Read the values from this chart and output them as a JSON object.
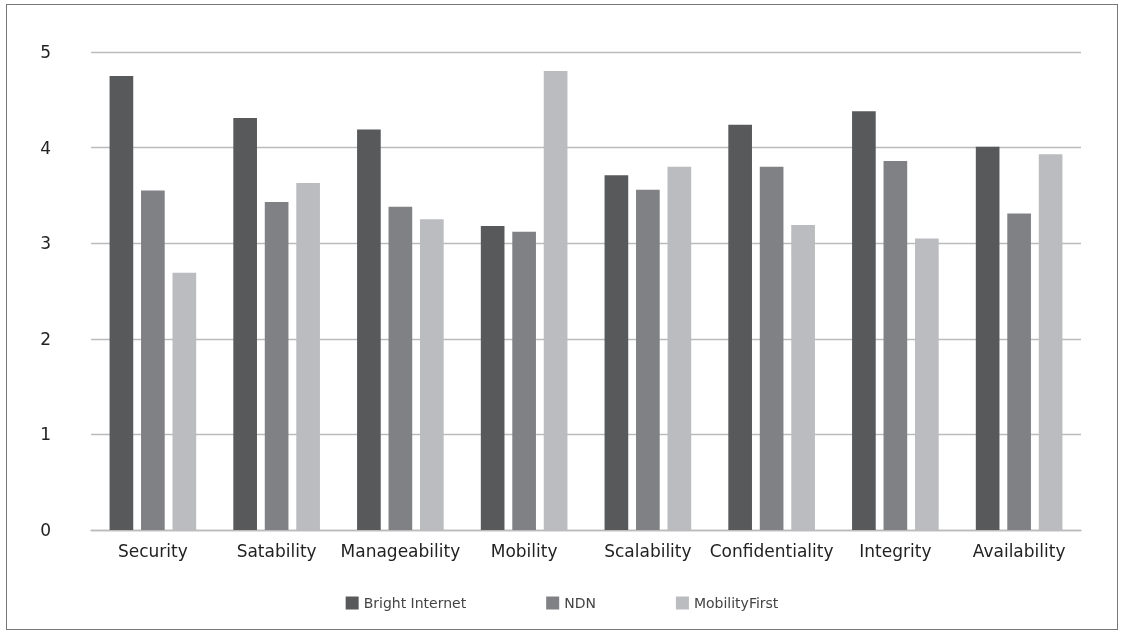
{
  "chart_data": {
    "type": "bar",
    "categories": [
      "Security",
      "Satability",
      "Manageability",
      "Mobility",
      "Scalability",
      "Confidentiality",
      "Integrity",
      "Availability"
    ],
    "series": [
      {
        "name": "Bright Internet",
        "color": "#58595b",
        "values": [
          4.75,
          4.31,
          4.19,
          3.18,
          3.71,
          4.24,
          4.38,
          4.01
        ]
      },
      {
        "name": "NDN",
        "color": "#808184",
        "values": [
          3.55,
          3.43,
          3.38,
          3.12,
          3.56,
          3.8,
          3.86,
          3.31
        ]
      },
      {
        "name": "MobilityFirst",
        "color": "#bbbcbf",
        "values": [
          2.69,
          3.63,
          3.25,
          4.8,
          3.8,
          3.19,
          3.05,
          3.93
        ]
      }
    ],
    "ylim": [
      0,
      5
    ],
    "yticks": [
      0,
      1,
      2,
      3,
      4,
      5
    ],
    "grid": "y",
    "legend": "bottom"
  }
}
